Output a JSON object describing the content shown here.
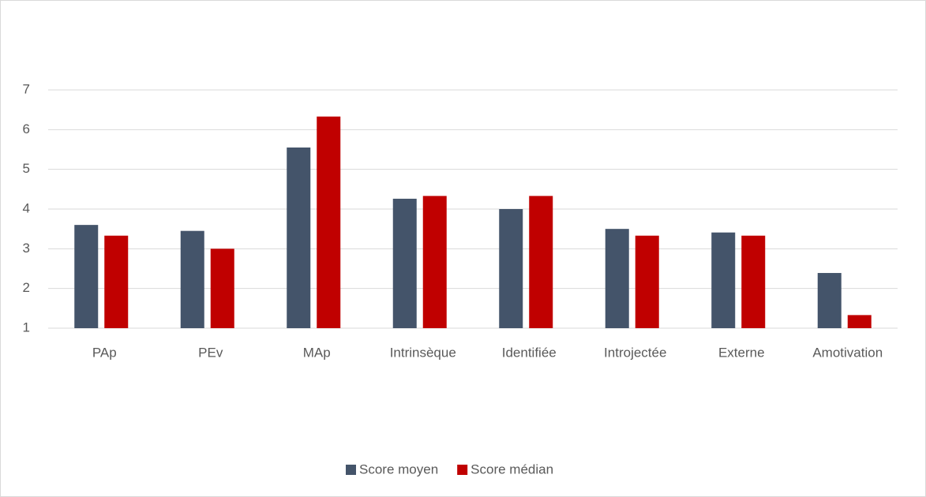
{
  "chart_data": {
    "type": "bar",
    "categories": [
      "PAp",
      "PEv",
      "MAp",
      "Intrinsèque",
      "Identifiée",
      "Introjectée",
      "Externe",
      "Amotivation"
    ],
    "series": [
      {
        "name": "Score moyen",
        "color": "#44546a",
        "values": [
          3.6,
          3.45,
          5.55,
          4.26,
          4.0,
          3.5,
          3.41,
          2.39
        ]
      },
      {
        "name": "Score médian",
        "color": "#c00000",
        "values": [
          3.33,
          3.0,
          6.33,
          4.33,
          4.33,
          3.33,
          3.33,
          1.33
        ]
      }
    ],
    "ylim": [
      1,
      7
    ],
    "yticks": [
      1,
      2,
      3,
      4,
      5,
      6,
      7
    ],
    "grid": true,
    "legend": "bottom"
  }
}
